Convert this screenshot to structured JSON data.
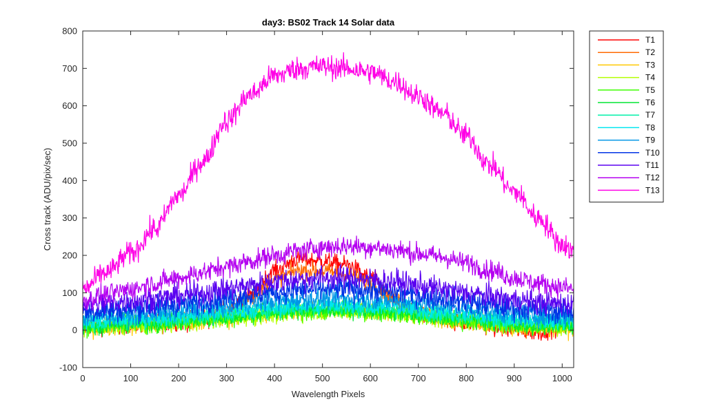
{
  "chart_data": {
    "type": "line",
    "title": "day3: BS02  Track 14 Solar data",
    "xlabel": "Wavelength Pixels",
    "ylabel": "Cross track (ADU/pix/sec)",
    "xlim": [
      0,
      1024
    ],
    "ylim": [
      -100,
      800
    ],
    "xticks": [
      0,
      100,
      200,
      300,
      400,
      500,
      600,
      700,
      800,
      900,
      1000
    ],
    "yticks": [
      -100,
      0,
      100,
      200,
      300,
      400,
      500,
      600,
      700,
      800
    ],
    "grid": false,
    "legend_position": "outside-top-right",
    "x_samples": [
      0,
      50,
      100,
      150,
      200,
      250,
      300,
      350,
      400,
      450,
      500,
      550,
      600,
      650,
      700,
      750,
      800,
      850,
      900,
      950,
      1000,
      1024
    ],
    "series": [
      {
        "name": "T1",
        "color": "#ff0000",
        "noise": 12,
        "values": [
          10,
          12,
          15,
          18,
          22,
          28,
          40,
          90,
          160,
          190,
          185,
          175,
          140,
          80,
          45,
          30,
          20,
          10,
          0,
          -5,
          10,
          15
        ]
      },
      {
        "name": "T2",
        "color": "#ff6a00",
        "noise": 12,
        "values": [
          15,
          17,
          20,
          24,
          28,
          35,
          50,
          90,
          135,
          160,
          158,
          150,
          125,
          80,
          50,
          35,
          25,
          15,
          8,
          5,
          15,
          20
        ]
      },
      {
        "name": "T3",
        "color": "#ffc800",
        "noise": 12,
        "values": [
          5,
          8,
          10,
          13,
          18,
          24,
          30,
          38,
          45,
          50,
          55,
          55,
          50,
          45,
          38,
          30,
          22,
          15,
          8,
          5,
          5,
          8
        ]
      },
      {
        "name": "T4",
        "color": "#b4ff00",
        "noise": 12,
        "values": [
          8,
          10,
          12,
          15,
          20,
          25,
          30,
          36,
          42,
          48,
          50,
          50,
          48,
          42,
          36,
          30,
          24,
          18,
          12,
          8,
          8,
          10
        ]
      },
      {
        "name": "T5",
        "color": "#3cff00",
        "noise": 12,
        "values": [
          10,
          12,
          15,
          18,
          22,
          27,
          32,
          38,
          45,
          50,
          52,
          52,
          50,
          45,
          38,
          32,
          26,
          20,
          14,
          10,
          10,
          12
        ]
      },
      {
        "name": "T6",
        "color": "#00e632",
        "noise": 12,
        "values": [
          12,
          14,
          17,
          20,
          25,
          30,
          36,
          42,
          48,
          53,
          55,
          55,
          53,
          48,
          42,
          36,
          30,
          22,
          16,
          12,
          12,
          14
        ]
      },
      {
        "name": "T7",
        "color": "#00f0aa",
        "noise": 12,
        "values": [
          20,
          22,
          25,
          28,
          32,
          38,
          44,
          50,
          56,
          60,
          62,
          62,
          60,
          56,
          50,
          44,
          38,
          30,
          24,
          20,
          20,
          22
        ]
      },
      {
        "name": "T8",
        "color": "#00e6f0",
        "noise": 12,
        "values": [
          25,
          27,
          30,
          34,
          38,
          44,
          50,
          56,
          62,
          66,
          68,
          68,
          66,
          62,
          56,
          50,
          44,
          36,
          30,
          25,
          25,
          28
        ]
      },
      {
        "name": "T9",
        "color": "#0096e6",
        "noise": 14,
        "values": [
          35,
          38,
          42,
          46,
          52,
          58,
          65,
          72,
          78,
          82,
          85,
          85,
          82,
          78,
          72,
          65,
          58,
          50,
          42,
          38,
          35,
          38
        ]
      },
      {
        "name": "T10",
        "color": "#0032e6",
        "noise": 16,
        "values": [
          50,
          53,
          58,
          63,
          70,
          78,
          86,
          94,
          102,
          108,
          110,
          110,
          108,
          102,
          94,
          86,
          78,
          68,
          60,
          54,
          50,
          52
        ]
      },
      {
        "name": "T11",
        "color": "#5a00f0",
        "noise": 16,
        "values": [
          70,
          73,
          78,
          84,
          92,
          100,
          110,
          120,
          130,
          136,
          140,
          140,
          136,
          130,
          120,
          110,
          100,
          90,
          82,
          75,
          70,
          72
        ]
      },
      {
        "name": "T12",
        "color": "#b400f0",
        "noise": 14,
        "values": [
          80,
          95,
          110,
          125,
          140,
          155,
          170,
          185,
          200,
          212,
          222,
          225,
          222,
          215,
          205,
          195,
          180,
          160,
          140,
          125,
          115,
          110
        ]
      },
      {
        "name": "T13",
        "color": "#ff00e6",
        "noise": 16,
        "values": [
          110,
          155,
          205,
          270,
          360,
          450,
          560,
          630,
          680,
          700,
          705,
          700,
          690,
          665,
          625,
          580,
          520,
          440,
          370,
          300,
          230,
          210
        ]
      }
    ]
  }
}
